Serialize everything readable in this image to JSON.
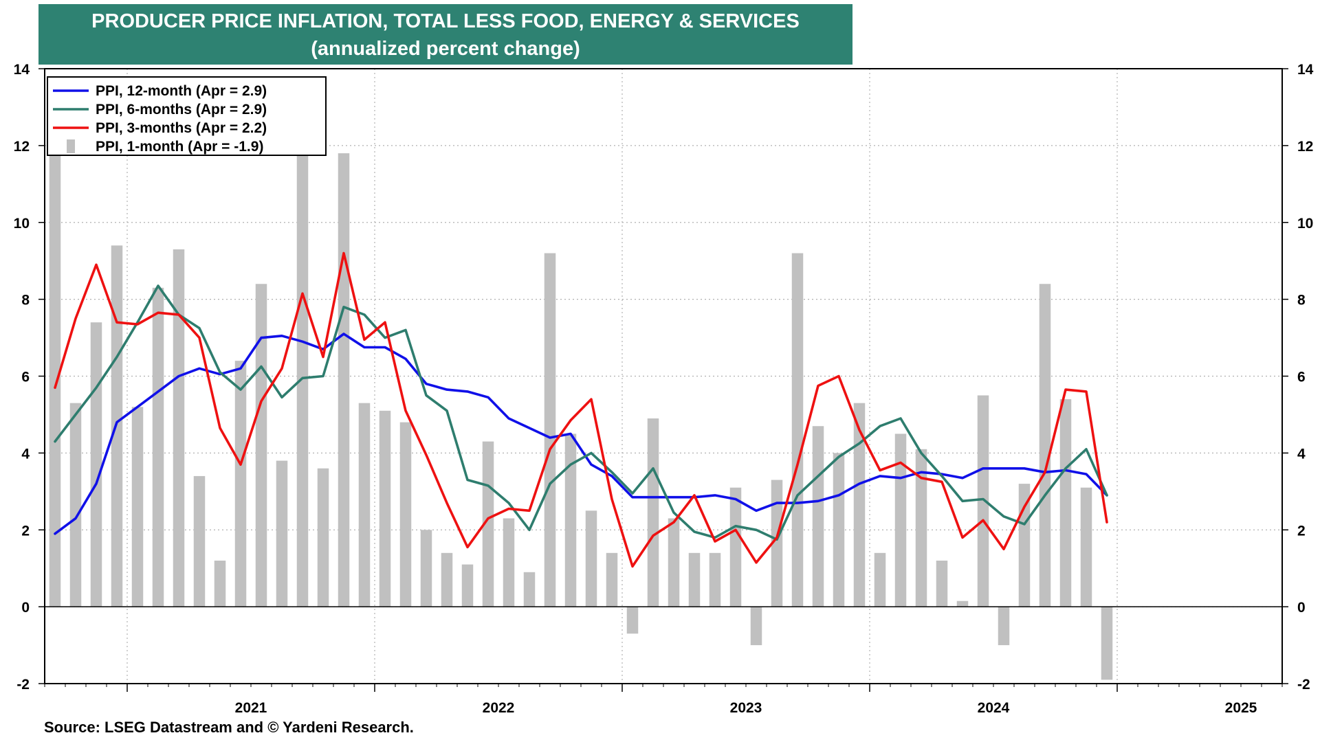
{
  "title": "PRODUCER PRICE INFLATION, TOTAL LESS FOOD, ENERGY & SERVICES",
  "subtitle": "(annualized percent change)",
  "source": "Source: LSEG Datastream and © Yardeni Research.",
  "colors": {
    "title_bg": "#2e8272",
    "ppi_12m": "#1010e8",
    "ppi_6m": "#2e7d6e",
    "ppi_3m": "#ee1111",
    "ppi_1m": "#c0c0c0"
  },
  "chart_data": {
    "type": "bar+line",
    "x_start": "2020-09",
    "xlabels": [
      "2021",
      "2022",
      "2023",
      "2024",
      "2025"
    ],
    "ylim": [
      -2,
      14
    ],
    "yticks": [
      "14",
      "12",
      "10",
      "8",
      "6",
      "4",
      "2",
      "0",
      "-2"
    ],
    "grid": true,
    "legend_position": "top-left",
    "bars": {
      "name": "PPI, 1-month (Apr = -1.9)",
      "values": [
        11.8,
        5.3,
        7.4,
        9.4,
        5.2,
        8.3,
        9.3,
        3.4,
        1.2,
        6.4,
        8.4,
        3.8,
        12.1,
        3.6,
        11.8,
        5.3,
        5.1,
        4.8,
        2.0,
        1.4,
        1.1,
        4.3,
        2.3,
        0.9,
        9.2,
        4.5,
        2.5,
        1.4,
        -0.7,
        4.9,
        2.3,
        1.4,
        1.4,
        3.1,
        -1.0,
        3.3,
        9.2,
        4.7,
        4.0,
        5.3,
        1.4,
        4.5,
        4.1,
        1.2,
        0.15,
        5.5,
        -1.0,
        3.2,
        8.4,
        5.4,
        3.1,
        -1.9
      ]
    },
    "series": [
      {
        "name": "PPI, 12-month (Apr = 2.9)",
        "values": [
          1.9,
          2.3,
          3.2,
          4.8,
          5.2,
          5.6,
          6.0,
          6.2,
          6.05,
          6.2,
          7.0,
          7.05,
          6.9,
          6.7,
          7.1,
          6.75,
          6.75,
          6.45,
          5.8,
          5.65,
          5.6,
          5.45,
          4.9,
          4.65,
          4.4,
          4.5,
          3.7,
          3.4,
          2.85,
          2.85,
          2.85,
          2.85,
          2.9,
          2.8,
          2.5,
          2.7,
          2.7,
          2.75,
          2.9,
          3.2,
          3.4,
          3.35,
          3.5,
          3.45,
          3.35,
          3.6,
          3.6,
          3.6,
          3.5,
          3.55,
          3.45,
          2.9
        ]
      },
      {
        "name": "PPI, 6-months (Apr = 2.9)",
        "values": [
          4.3,
          5.0,
          5.7,
          6.5,
          7.4,
          8.35,
          7.6,
          7.25,
          6.1,
          5.65,
          6.25,
          5.45,
          5.95,
          6.0,
          7.8,
          7.6,
          7.0,
          7.2,
          5.5,
          5.1,
          3.3,
          3.15,
          2.7,
          2.0,
          3.2,
          3.7,
          4.0,
          3.5,
          2.95,
          3.6,
          2.45,
          1.95,
          1.8,
          2.1,
          2.0,
          1.75,
          2.9,
          3.4,
          3.9,
          4.25,
          4.7,
          4.9,
          4.0,
          3.4,
          2.75,
          2.8,
          2.35,
          2.15,
          2.9,
          3.6,
          4.1,
          2.9
        ]
      },
      {
        "name": "PPI, 3-months (Apr = 2.2)",
        "values": [
          5.7,
          7.5,
          8.9,
          7.4,
          7.35,
          7.65,
          7.6,
          7.0,
          4.65,
          3.7,
          5.35,
          6.2,
          8.15,
          6.5,
          9.2,
          6.95,
          7.4,
          5.1,
          3.95,
          2.7,
          1.55,
          2.3,
          2.55,
          2.5,
          4.1,
          4.85,
          5.4,
          2.8,
          1.05,
          1.85,
          2.2,
          2.9,
          1.7,
          2.0,
          1.15,
          1.8,
          3.7,
          5.75,
          6.0,
          4.6,
          3.55,
          3.75,
          3.35,
          3.25,
          1.8,
          2.25,
          1.5,
          2.6,
          3.5,
          5.65,
          5.6,
          2.2
        ]
      }
    ]
  }
}
